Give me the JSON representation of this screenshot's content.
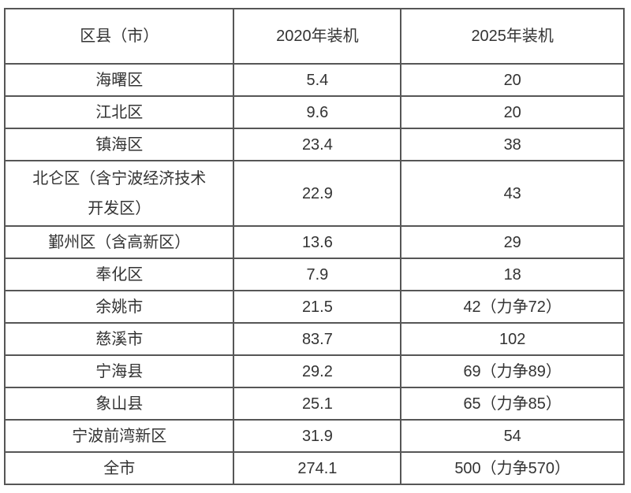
{
  "colors": {
    "border": "#565656",
    "text": "#333333",
    "background": "#ffffff"
  },
  "chart_data": {
    "type": "table",
    "columns": [
      "区县（市）",
      "2020年装机",
      "2025年装机"
    ],
    "rows": [
      [
        "海曙区",
        "5.4",
        "20"
      ],
      [
        "江北区",
        "9.6",
        "20"
      ],
      [
        "镇海区",
        "23.4",
        "38"
      ],
      [
        "北仑区（含宁波经济技术\n开发区）",
        "22.9",
        "43"
      ],
      [
        "鄞州区（含高新区）",
        "13.6",
        "29"
      ],
      [
        "奉化区",
        "7.9",
        "18"
      ],
      [
        "余姚市",
        "21.5",
        "42（力争72）"
      ],
      [
        "慈溪市",
        "83.7",
        "102"
      ],
      [
        "宁海县",
        "29.2",
        "69（力争89）"
      ],
      [
        "象山县",
        "25.1",
        "65（力争85）"
      ],
      [
        "宁波前湾新区",
        "31.9",
        "54"
      ],
      [
        "全市",
        "274.1",
        "500（力争570）"
      ]
    ]
  }
}
